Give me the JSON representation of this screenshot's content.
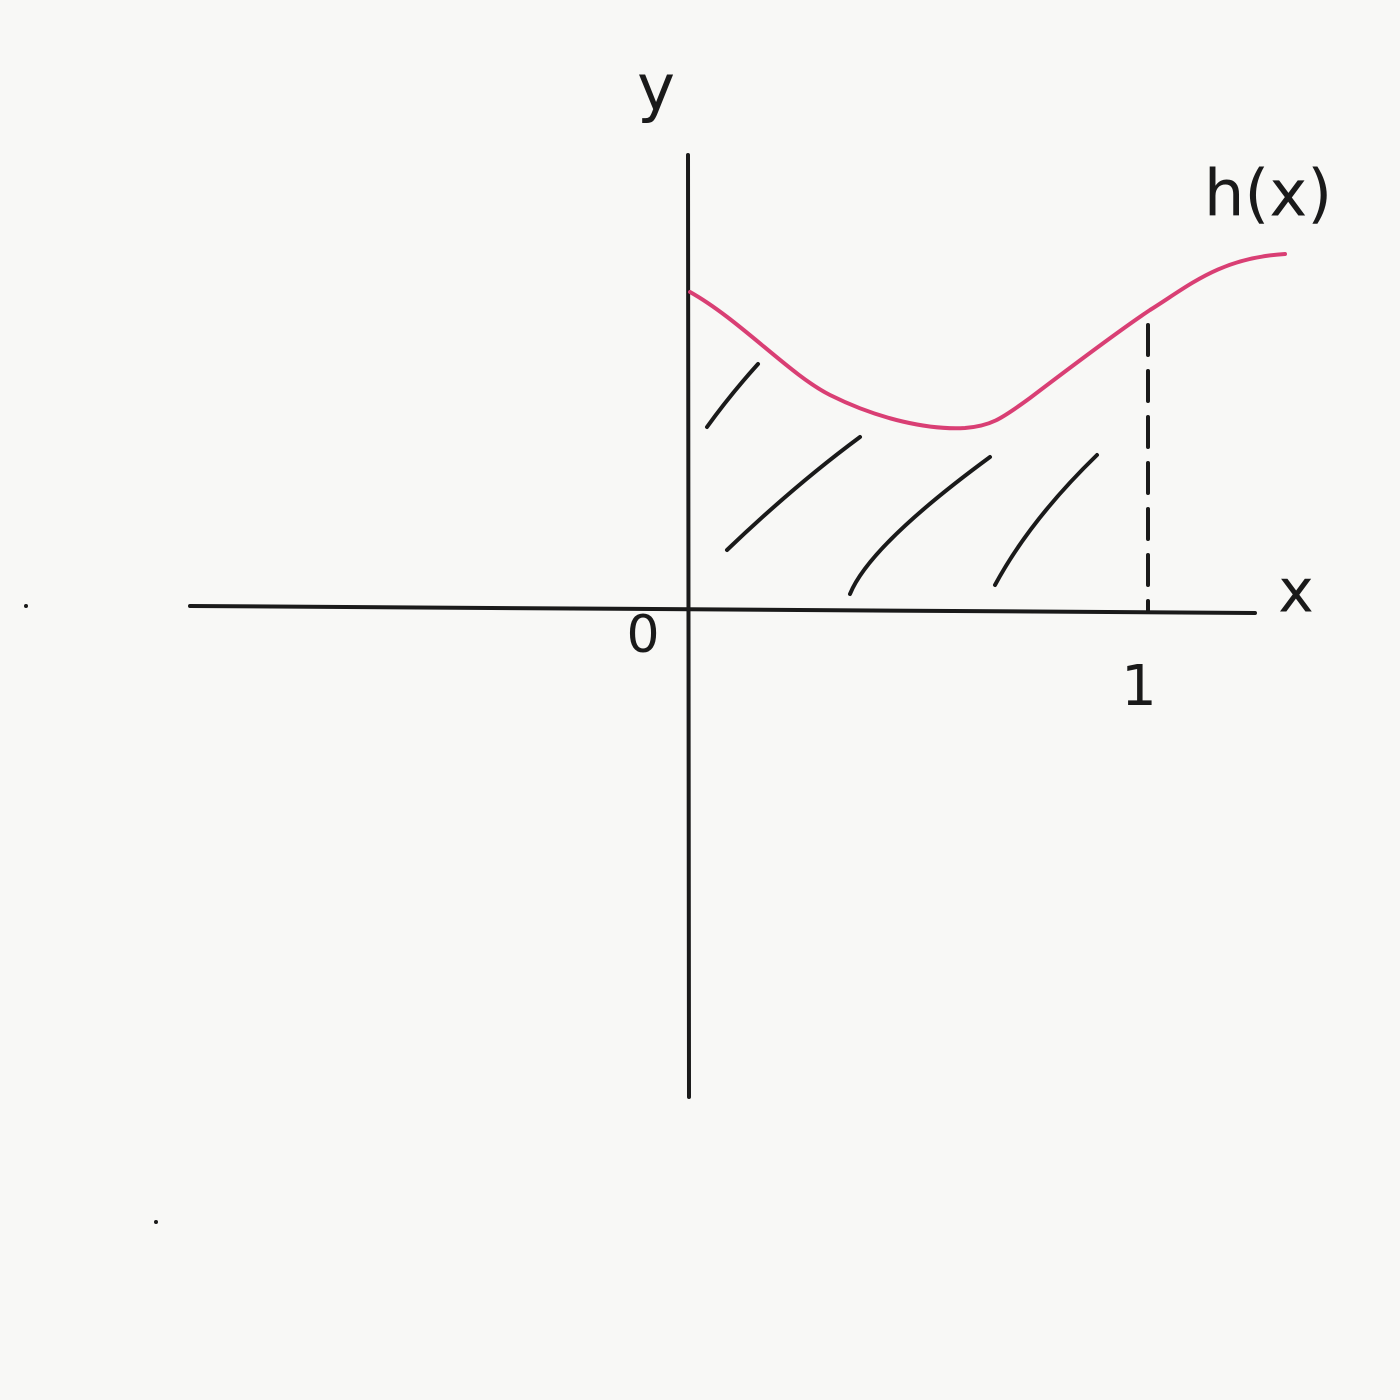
{
  "axes": {
    "x_label": "x",
    "y_label": "y",
    "origin_label": "0",
    "x_mark_label": "1"
  },
  "curve": {
    "label": "h(x)"
  }
}
